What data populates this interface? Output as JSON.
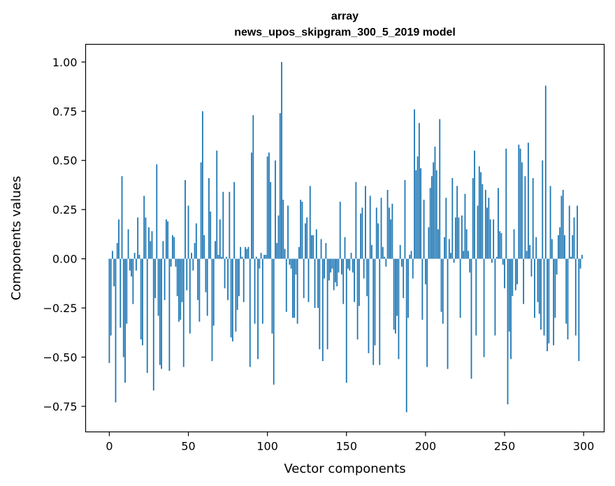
{
  "chart_data": {
    "type": "bar",
    "title": "array",
    "subtitle": "news_upos_skipgram_300_5_2019 model",
    "xlabel": "Vector components",
    "ylabel": "Components values",
    "xlim": [
      -15,
      313
    ],
    "ylim": [
      -0.88,
      1.09
    ],
    "grid": false,
    "legend": "none",
    "bar_color": "#1f77b4",
    "x_ticks": [
      0,
      50,
      100,
      150,
      200,
      250,
      300
    ],
    "x_tick_labels": [
      "0",
      "50",
      "100",
      "150",
      "200",
      "250",
      "300"
    ],
    "y_ticks": [
      1.0,
      0.75,
      0.5,
      0.25,
      0.0,
      -0.25,
      -0.5,
      -0.75
    ],
    "y_tick_labels": [
      "1.00",
      "0.75",
      "0.50",
      "0.25",
      "0.00",
      "−0.25",
      "−0.50",
      "−0.75"
    ],
    "x": [
      0,
      1,
      2,
      3,
      4,
      5,
      6,
      7,
      8,
      9,
      10,
      11,
      12,
      13,
      14,
      15,
      16,
      17,
      18,
      19,
      20,
      21,
      22,
      23,
      24,
      25,
      26,
      27,
      28,
      29,
      30,
      31,
      32,
      33,
      34,
      35,
      36,
      37,
      38,
      39,
      40,
      41,
      42,
      43,
      44,
      45,
      46,
      47,
      48,
      49,
      50,
      51,
      52,
      53,
      54,
      55,
      56,
      57,
      58,
      59,
      60,
      61,
      62,
      63,
      64,
      65,
      66,
      67,
      68,
      69,
      70,
      71,
      72,
      73,
      74,
      75,
      76,
      77,
      78,
      79,
      80,
      81,
      82,
      83,
      84,
      85,
      86,
      87,
      88,
      89,
      90,
      91,
      92,
      93,
      94,
      95,
      96,
      97,
      98,
      99,
      100,
      101,
      102,
      103,
      104,
      105,
      106,
      107,
      108,
      109,
      110,
      111,
      112,
      113,
      114,
      115,
      116,
      117,
      118,
      119,
      120,
      121,
      122,
      123,
      124,
      125,
      126,
      127,
      128,
      129,
      130,
      131,
      132,
      133,
      134,
      135,
      136,
      137,
      138,
      139,
      140,
      141,
      142,
      143,
      144,
      145,
      146,
      147,
      148,
      149,
      150,
      151,
      152,
      153,
      154,
      155,
      156,
      157,
      158,
      159,
      160,
      161,
      162,
      163,
      164,
      165,
      166,
      167,
      168,
      169,
      170,
      171,
      172,
      173,
      174,
      175,
      176,
      177,
      178,
      179,
      180,
      181,
      182,
      183,
      184,
      185,
      186,
      187,
      188,
      189,
      190,
      191,
      192,
      193,
      194,
      195,
      196,
      197,
      198,
      199,
      200,
      201,
      202,
      203,
      204,
      205,
      206,
      207,
      208,
      209,
      210,
      211,
      212,
      213,
      214,
      215,
      216,
      217,
      218,
      219,
      220,
      221,
      222,
      223,
      224,
      225,
      226,
      227,
      228,
      229,
      230,
      231,
      232,
      233,
      234,
      235,
      236,
      237,
      238,
      239,
      240,
      241,
      242,
      243,
      244,
      245,
      246,
      247,
      248,
      249,
      250,
      251,
      252,
      253,
      254,
      255,
      256,
      257,
      258,
      259,
      260,
      261,
      262,
      263,
      264,
      265,
      266,
      267,
      268,
      269,
      270,
      271,
      272,
      273,
      274,
      275,
      276,
      277,
      278,
      279,
      280,
      281,
      282,
      283,
      284,
      285,
      286,
      287,
      288,
      289,
      290,
      291,
      292,
      293,
      294,
      295,
      296,
      297,
      298,
      299
    ],
    "values": [
      -0.53,
      -0.39,
      0.04,
      -0.14,
      -0.73,
      0.08,
      0.2,
      -0.35,
      0.42,
      -0.5,
      -0.63,
      -0.33,
      0.15,
      -0.06,
      -0.09,
      -0.23,
      0.03,
      -0.06,
      0.21,
      0.02,
      -0.41,
      -0.44,
      0.32,
      0.21,
      -0.58,
      0.16,
      0.09,
      0.14,
      -0.67,
      -0.2,
      0.48,
      -0.29,
      -0.54,
      -0.56,
      0.09,
      -0.21,
      0.2,
      0.19,
      -0.57,
      -0.04,
      0.12,
      0.11,
      -0.04,
      -0.19,
      -0.32,
      -0.31,
      -0.22,
      -0.55,
      0.4,
      -0.16,
      0.27,
      -0.38,
      0.03,
      -0.06,
      0.08,
      0.18,
      -0.21,
      -0.32,
      0.49,
      0.75,
      0.12,
      -0.17,
      -0.29,
      0.41,
      0.24,
      -0.52,
      -0.34,
      0.09,
      0.55,
      0.02,
      0.2,
      0.01,
      0.34,
      -0.15,
      0.01,
      -0.21,
      0.34,
      -0.4,
      -0.42,
      0.39,
      -0.37,
      -0.26,
      -0.19,
      0.06,
      0.01,
      -0.22,
      0.06,
      0.05,
      0.06,
      -0.55,
      0.54,
      0.73,
      -0.33,
      0.01,
      -0.51,
      -0.05,
      0.03,
      -0.33,
      0.02,
      0.02,
      0.52,
      0.54,
      0.39,
      -0.38,
      -0.64,
      0.5,
      0.08,
      0.22,
      0.74,
      1.0,
      0.3,
      0.05,
      -0.27,
      0.27,
      -0.03,
      -0.05,
      -0.3,
      -0.3,
      -0.08,
      -0.33,
      0.06,
      0.3,
      0.29,
      -0.2,
      0.18,
      0.21,
      -0.22,
      0.37,
      0.12,
      0.12,
      -0.25,
      0.15,
      -0.25,
      -0.46,
      0.1,
      -0.52,
      -0.1,
      0.08,
      -0.46,
      -0.11,
      -0.07,
      -0.05,
      -0.16,
      -0.12,
      -0.14,
      -0.07,
      0.29,
      -0.08,
      -0.23,
      0.11,
      -0.63,
      -0.05,
      -0.06,
      0.03,
      -0.07,
      -0.22,
      0.39,
      -0.41,
      -0.24,
      0.23,
      0.26,
      -0.1,
      0.37,
      -0.19,
      -0.48,
      0.32,
      0.07,
      -0.54,
      -0.44,
      0.26,
      0.18,
      -0.54,
      0.31,
      0.06,
      0.01,
      -0.04,
      0.35,
      0.26,
      0.2,
      0.28,
      -0.36,
      -0.38,
      -0.29,
      -0.51,
      0.07,
      -0.04,
      -0.2,
      0.4,
      -0.78,
      -0.3,
      0.02,
      0.04,
      -0.1,
      0.76,
      0.45,
      0.52,
      0.69,
      0.46,
      -0.31,
      0.3,
      -0.13,
      -0.55,
      0.16,
      0.36,
      0.42,
      0.49,
      0.57,
      0.45,
      0.15,
      0.71,
      -0.27,
      -0.33,
      0.11,
      0.31,
      -0.56,
      0.1,
      0.03,
      0.41,
      -0.02,
      0.21,
      0.37,
      0.21,
      -0.3,
      0.22,
      0.04,
      0.33,
      0.15,
      0.04,
      -0.07,
      -0.61,
      0.41,
      0.55,
      -0.39,
      0.27,
      0.47,
      0.44,
      0.38,
      -0.5,
      0.35,
      0.26,
      0.31,
      0.2,
      -0.02,
      0.2,
      -0.39,
      0.01,
      0.36,
      0.14,
      0.13,
      -0.03,
      -0.15,
      0.56,
      -0.74,
      -0.37,
      -0.51,
      -0.19,
      0.15,
      -0.16,
      -0.13,
      0.58,
      0.56,
      0.49,
      -0.23,
      0.42,
      0.04,
      0.59,
      0.07,
      -0.09,
      0.41,
      -0.3,
      0.11,
      -0.22,
      -0.28,
      -0.36,
      0.5,
      -0.39,
      0.88,
      -0.47,
      -0.43,
      0.37,
      0.1,
      -0.44,
      -0.3,
      -0.08,
      0.12,
      0.16,
      0.32,
      0.35,
      0.12,
      -0.33,
      -0.41,
      0.27,
      0.01,
      0.12,
      0.21,
      -0.39,
      0.27,
      -0.52,
      -0.05,
      0.02
    ]
  }
}
